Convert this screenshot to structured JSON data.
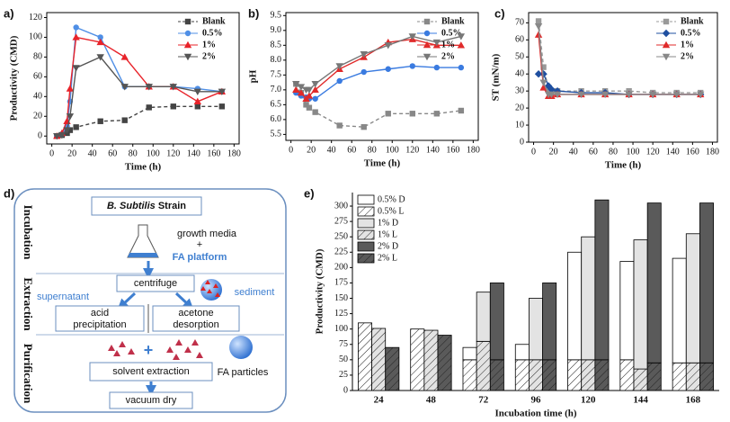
{
  "chart_data": [
    {
      "type": "line",
      "label": "a)",
      "ylabel": "Productivity (CMD)",
      "xlabel": "Time (h)",
      "x": [
        5,
        10,
        15,
        18,
        24,
        48,
        72,
        96,
        120,
        144,
        168
      ],
      "xlim": [
        -5,
        185
      ],
      "xticks": [
        0,
        20,
        40,
        60,
        80,
        100,
        120,
        140,
        160,
        180
      ],
      "ylim": [
        -8,
        125
      ],
      "yticks": [
        0,
        20,
        40,
        60,
        80,
        100,
        120
      ],
      "legend": "top-right",
      "series": [
        {
          "name": "Blank",
          "color": "#444444",
          "marker": "square",
          "dash": true,
          "values": [
            0,
            1,
            3,
            6,
            9,
            15,
            16,
            29,
            30,
            30,
            30
          ]
        },
        {
          "name": "0.5%",
          "color": "#4f8fe6",
          "marker": "circle",
          "values": [
            0,
            2,
            10,
            35,
            110,
            100,
            50,
            50,
            50,
            48,
            45
          ]
        },
        {
          "name": "1%",
          "color": "#e8232a",
          "marker": "triangle",
          "values": [
            0,
            3,
            15,
            48,
            100,
            95,
            80,
            50,
            50,
            35,
            45
          ]
        },
        {
          "name": "2%",
          "color": "#555555",
          "marker": "triangle-down",
          "values": [
            0,
            1,
            6,
            20,
            69,
            80,
            50,
            50,
            50,
            45,
            45
          ]
        }
      ]
    },
    {
      "type": "line",
      "label": "b)",
      "ylabel": "pH",
      "xlabel": "Time (h)",
      "x": [
        5,
        10,
        15,
        18,
        24,
        48,
        72,
        96,
        120,
        144,
        168
      ],
      "xlim": [
        -5,
        185
      ],
      "xticks": [
        0,
        20,
        40,
        60,
        80,
        100,
        120,
        140,
        160,
        180
      ],
      "ylim": [
        5.3,
        9.6
      ],
      "yticks": [
        5.5,
        {
          "value": 6,
          "label": "6.0"
        },
        6.5,
        {
          "value": 7,
          "label": "7.0"
        },
        7.5,
        {
          "value": 8,
          "label": "8.0"
        },
        8.5,
        {
          "value": 9,
          "label": "9.0"
        },
        9.5
      ],
      "legend": "top-right",
      "series": [
        {
          "name": "Blank",
          "color": "#888888",
          "marker": "square",
          "dash": true,
          "values": [
            7.2,
            6.9,
            6.5,
            6.4,
            6.25,
            5.8,
            5.75,
            6.2,
            6.2,
            6.2,
            6.3
          ]
        },
        {
          "name": "0.5%",
          "color": "#3a7be0",
          "marker": "circle",
          "values": [
            6.9,
            6.8,
            6.75,
            6.7,
            6.7,
            7.3,
            7.6,
            7.7,
            7.8,
            7.75,
            7.75
          ]
        },
        {
          "name": "1%",
          "color": "#e02a2a",
          "marker": "triangle",
          "values": [
            7.0,
            6.9,
            6.7,
            6.8,
            7.0,
            7.7,
            8.1,
            8.6,
            8.7,
            8.5,
            8.5
          ]
        },
        {
          "name": "2%",
          "color": "#777777",
          "marker": "triangle-down",
          "values": [
            7.2,
            7.1,
            7.0,
            7.0,
            7.2,
            7.8,
            8.2,
            8.5,
            8.8,
            8.6,
            8.8
          ]
        }
      ]
    },
    {
      "type": "line",
      "label": "c)",
      "ylabel": "ST (mN/m)",
      "xlabel": "Time (h)",
      "x": [
        5,
        10,
        15,
        18,
        24,
        48,
        72,
        96,
        120,
        144,
        168
      ],
      "xlim": [
        -5,
        185
      ],
      "xticks": [
        0,
        20,
        40,
        60,
        80,
        100,
        120,
        140,
        160,
        180
      ],
      "ylim": [
        0,
        76
      ],
      "yticks": [
        0,
        10,
        20,
        30,
        40,
        50,
        60,
        70
      ],
      "legend": "top-right",
      "series": [
        {
          "name": "Blank",
          "color": "#999999",
          "marker": "square",
          "dash": true,
          "values": [
            71,
            44,
            31,
            30,
            30,
            30,
            30,
            30,
            29,
            29,
            29
          ]
        },
        {
          "name": "0.5%",
          "color": "#1f4fa0",
          "marker": "diamond",
          "values": [
            40,
            40,
            33,
            31,
            30,
            29,
            29,
            28,
            28,
            28,
            28
          ]
        },
        {
          "name": "1%",
          "color": "#e02a2a",
          "marker": "triangle",
          "values": [
            63,
            32,
            27,
            27,
            28,
            28,
            28,
            28,
            28,
            28,
            28
          ]
        },
        {
          "name": "2%",
          "color": "#888888",
          "marker": "triangle-down",
          "values": [
            68,
            35,
            28,
            28,
            28,
            28,
            28,
            28,
            28,
            28,
            28
          ]
        }
      ]
    },
    {
      "type": "bar",
      "label": "e)",
      "ylabel": "Productivity (CMD)",
      "xlabel": "Incubation time (h)",
      "categories": [
        "24",
        "48",
        "72",
        "96",
        "120",
        "144",
        "168"
      ],
      "ylim": [
        0,
        322
      ],
      "yticks": [
        0,
        25,
        50,
        75,
        100,
        125,
        150,
        175,
        200,
        225,
        250,
        275,
        300
      ],
      "legend": "top-left",
      "series": [
        {
          "name": "0.5% D",
          "color": "#ffffff",
          "values": [
            0,
            0,
            20,
            25,
            175,
            160,
            170
          ]
        },
        {
          "name": "0.5% L",
          "color": "#ffffff",
          "hatch": true,
          "values": [
            110,
            100,
            50,
            50,
            50,
            50,
            45
          ]
        },
        {
          "name": "1% D",
          "color": "#e3e3e3",
          "values": [
            0,
            0,
            80,
            100,
            200,
            210,
            210
          ]
        },
        {
          "name": "1% L",
          "color": "#e3e3e3",
          "hatch": true,
          "values": [
            101,
            98,
            80,
            50,
            50,
            35,
            45
          ]
        },
        {
          "name": "2% D",
          "color": "#5a5a5a",
          "values": [
            0,
            0,
            125,
            125,
            260,
            260,
            260
          ]
        },
        {
          "name": "2% L",
          "color": "#5a5a5a",
          "hatch": true,
          "values": [
            70,
            90,
            50,
            50,
            50,
            45,
            45
          ]
        }
      ]
    }
  ],
  "diagram": {
    "label": "d)",
    "strain": {
      "species": "B. Subtilis",
      "word": "Strain"
    },
    "sections": [
      "Incubation",
      "Extraction",
      "Purification"
    ],
    "growth_media": "growth media",
    "plus": "+",
    "fa_platform": "FA platform",
    "centrifuge": "centrifuge",
    "supernatant": "supernatant",
    "sediment": "sediment",
    "acid": [
      "acid",
      "precipitation"
    ],
    "acetone": [
      "acetone",
      "desorption"
    ],
    "solvent_extraction": "solvent extraction",
    "fa_particles": "FA particles",
    "vacuum_dry": "vacuum dry"
  }
}
